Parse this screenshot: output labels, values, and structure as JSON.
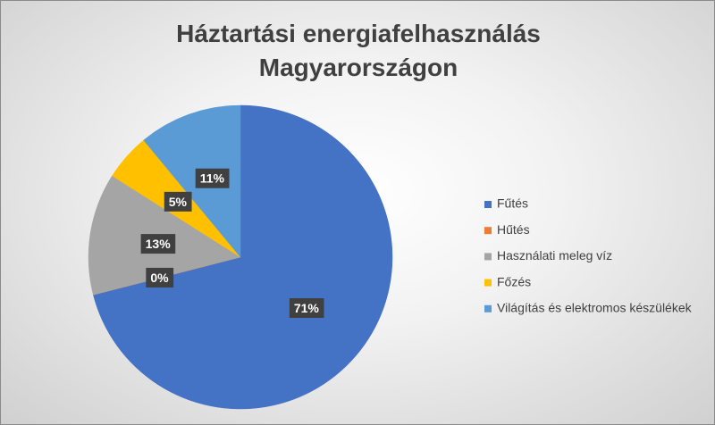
{
  "chart_data": {
    "type": "pie",
    "title": "Háztartási energiafelhasználás Magyarországon",
    "categories": [
      "Fűtés",
      "Hűtés",
      "Használati meleg víz",
      "Főzés",
      "Világítás és elektromos készülékek"
    ],
    "values": [
      71,
      0,
      13,
      5,
      11
    ],
    "value_labels": [
      "71%",
      "0%",
      "13%",
      "5%",
      "11%"
    ],
    "colors": [
      "#4472c4",
      "#ed7d31",
      "#a5a5a5",
      "#ffc000",
      "#5b9bd5"
    ],
    "legend": "right"
  }
}
